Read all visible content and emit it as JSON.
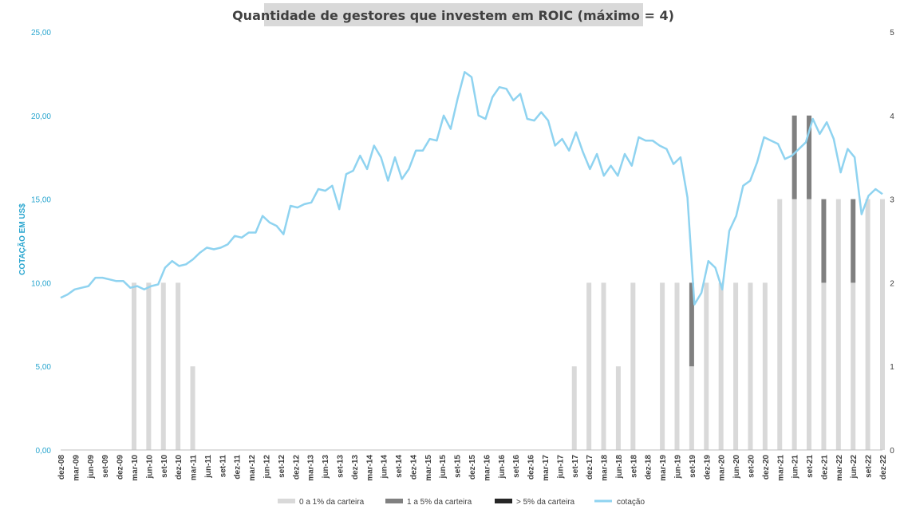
{
  "chart_data": {
    "type": "bar+line",
    "title": "Quantidade de gestores que investem em ROIC (máximo = 4)",
    "ylabel": "COTAÇÃO EM US$",
    "ylim_left": [
      0,
      25
    ],
    "yticks_left": [
      "25,00",
      "20,00",
      "15,00",
      "10,00",
      "5,00",
      "0,00"
    ],
    "ylim_right": [
      0,
      5
    ],
    "yticks_right": [
      "5",
      "4",
      "3",
      "2",
      "1",
      "0"
    ],
    "grid": false,
    "legend_position": "bottom",
    "colors": {
      "s0a1": "#d9d9d9",
      "s1a5": "#808080",
      "s5plus": "#262626",
      "cotacao": "#8fd3f0"
    },
    "x_labels": [
      "dez-08",
      "mar-09",
      "jun-09",
      "set-09",
      "dez-09",
      "mar-10",
      "jun-10",
      "set-10",
      "dez-10",
      "mar-11",
      "jun-11",
      "set-11",
      "dez-11",
      "mar-12",
      "jun-12",
      "set-12",
      "dez-12",
      "mar-13",
      "jun-13",
      "set-13",
      "dez-13",
      "mar-14",
      "jun-14",
      "set-14",
      "dez-14",
      "mar-15",
      "jun-15",
      "set-15",
      "dez-15",
      "mar-16",
      "jun-16",
      "set-16",
      "dez-16",
      "mar-17",
      "jun-17",
      "set-17",
      "dez-17",
      "mar-18",
      "jun-18",
      "set-18",
      "dez-18",
      "mar-19",
      "jun-19",
      "set-19",
      "dez-19",
      "mar-20",
      "jun-20",
      "set-20",
      "dez-20",
      "mar-21",
      "jun-21",
      "set-21",
      "dez-21",
      "mar-22",
      "jun-22",
      "set-22",
      "dez-22"
    ],
    "series": [
      {
        "name": "0 a 1% da carteira",
        "axis": "right",
        "kind": "bar",
        "values": [
          0,
          0,
          0,
          0,
          0,
          2,
          2,
          2,
          2,
          1,
          0,
          0,
          0,
          0,
          0,
          0,
          0,
          0,
          0,
          0,
          0,
          0,
          0,
          0,
          0,
          0,
          0,
          0,
          0,
          0,
          0,
          0,
          0,
          0,
          0,
          1,
          2,
          2,
          1,
          2,
          0,
          2,
          2,
          1,
          2,
          2,
          2,
          2,
          2,
          3,
          3,
          3,
          2,
          3,
          2,
          3,
          3
        ]
      },
      {
        "name": "1 a 5% da carteira",
        "axis": "right",
        "kind": "bar",
        "values": [
          0,
          0,
          0,
          0,
          0,
          0,
          0,
          0,
          0,
          0,
          0,
          0,
          0,
          0,
          0,
          0,
          0,
          0,
          0,
          0,
          0,
          0,
          0,
          0,
          0,
          0,
          0,
          0,
          0,
          0,
          0,
          0,
          0,
          0,
          0,
          0,
          0,
          0,
          0,
          0,
          0,
          0,
          0,
          1,
          0,
          0,
          0,
          0,
          0,
          0,
          1,
          1,
          1,
          0,
          1,
          0,
          0
        ]
      },
      {
        "name": "> 5% da carteira",
        "axis": "right",
        "kind": "bar",
        "values": [
          0,
          0,
          0,
          0,
          0,
          0,
          0,
          0,
          0,
          0,
          0,
          0,
          0,
          0,
          0,
          0,
          0,
          0,
          0,
          0,
          0,
          0,
          0,
          0,
          0,
          0,
          0,
          0,
          0,
          0,
          0,
          0,
          0,
          0,
          0,
          0,
          0,
          0,
          0,
          0,
          0,
          0,
          0,
          0,
          0,
          0,
          0,
          0,
          0,
          0,
          0,
          0,
          0,
          0,
          0,
          0,
          0
        ]
      },
      {
        "name": "cotação",
        "axis": "left",
        "kind": "line",
        "values": [
          9.1,
          9.3,
          9.6,
          9.7,
          9.8,
          10.3,
          10.3,
          10.2,
          10.1,
          10.1,
          9.7,
          9.8,
          9.6,
          9.8,
          9.9,
          10.9,
          11.3,
          11.0,
          11.1,
          11.4,
          11.8,
          12.1,
          12.0,
          12.1,
          12.3,
          12.8,
          12.7,
          13.0,
          13.0,
          14.0,
          13.6,
          13.4,
          12.9,
          14.6,
          14.5,
          14.7,
          14.8,
          15.6,
          15.5,
          15.8,
          14.4,
          16.5,
          16.7,
          17.6,
          16.8,
          18.2,
          17.5,
          16.1,
          17.5,
          16.2,
          16.8,
          17.9,
          17.9,
          18.6,
          18.5,
          20.0,
          19.2,
          21.0,
          22.6,
          22.3,
          20.0,
          19.8,
          21.1,
          21.7,
          21.6,
          20.9,
          21.3,
          19.8,
          19.7,
          20.2,
          19.7,
          18.2,
          18.6,
          17.9,
          19.0,
          17.8,
          16.8,
          17.7,
          16.4,
          17.0,
          16.4,
          17.7,
          17.0,
          18.7,
          18.5,
          18.5,
          18.2,
          18.0,
          17.1,
          17.5,
          15.1,
          8.7,
          9.4,
          11.3,
          10.9,
          9.6,
          13.1,
          14.0,
          15.8,
          16.1,
          17.2,
          18.7,
          18.5,
          18.3,
          17.4,
          17.6,
          18.0,
          18.4,
          19.8,
          18.9,
          19.6,
          18.6,
          16.6,
          18.0,
          17.5,
          14.1,
          15.2,
          15.6,
          15.3
        ]
      }
    ]
  }
}
